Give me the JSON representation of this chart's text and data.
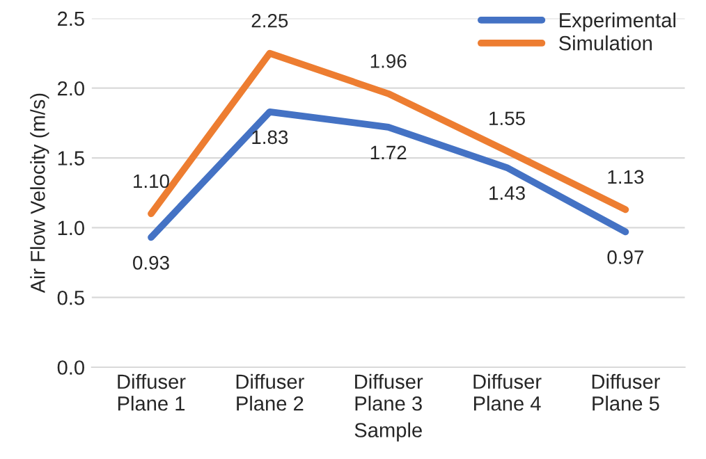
{
  "chart_data": {
    "type": "line",
    "xlabel": "Sample",
    "ylabel": "Air Flow Velocity (m/s)",
    "categories": [
      "Diffuser\nPlane 1",
      "Diffuser\nPlane 2",
      "Diffuser\nPlane 3",
      "Diffuser\nPlane 4",
      "Diffuser\nPlane 5"
    ],
    "series": [
      {
        "name": "Experimental",
        "color": "#4472c4",
        "values": [
          0.93,
          1.83,
          1.72,
          1.43,
          0.97
        ],
        "value_labels": [
          "0.93",
          "1.83",
          "1.72",
          "1.43",
          "0.97"
        ]
      },
      {
        "name": "Simulation",
        "color": "#ed7d31",
        "values": [
          1.1,
          2.25,
          1.96,
          1.55,
          1.13
        ],
        "value_labels": [
          "1.10",
          "2.25",
          "1.96",
          "1.55",
          "1.13"
        ]
      }
    ],
    "ylim": [
      0,
      2.5
    ],
    "yticks": [
      {
        "value": 0,
        "label": "0.0"
      },
      {
        "value": 0.5,
        "label": "0.5"
      },
      {
        "value": 1,
        "label": "1.0"
      },
      {
        "value": 1.5,
        "label": "1.5"
      },
      {
        "value": 2,
        "label": "2.0"
      },
      {
        "value": 2.5,
        "label": "2.5"
      }
    ],
    "grid": "y",
    "legend": "top right",
    "marker": "none",
    "line_style": "solid"
  }
}
